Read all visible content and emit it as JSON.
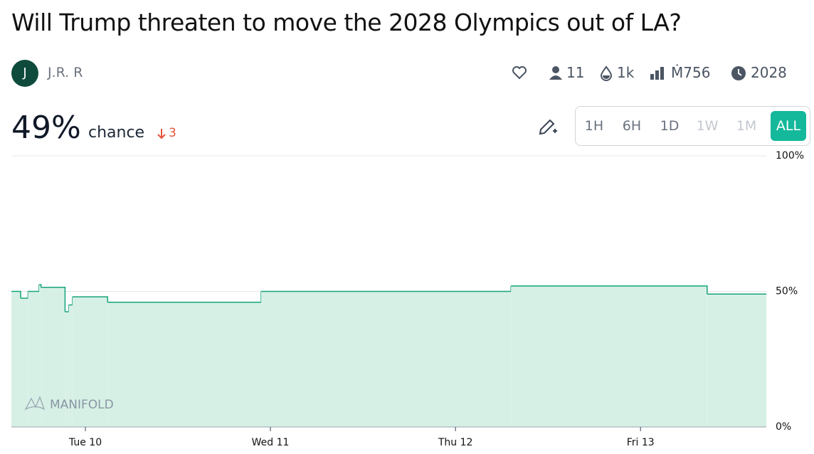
{
  "header": {
    "title": "Will Trump threaten to move the 2028 Olympics out of LA?",
    "avatar": "J",
    "author": "J.R. R",
    "stats": {
      "traders": "11",
      "liquidity": "1k",
      "volume": "Ṁ756",
      "close": "2028"
    }
  },
  "probability": {
    "value": "49%",
    "label": "chance",
    "change": "3"
  },
  "range_buttons": [
    {
      "label": "1H",
      "state": "enabled"
    },
    {
      "label": "6H",
      "state": "enabled"
    },
    {
      "label": "1D",
      "state": "enabled"
    },
    {
      "label": "1W",
      "state": "disabled"
    },
    {
      "label": "1M",
      "state": "disabled"
    },
    {
      "label": "ALL",
      "state": "selected"
    }
  ],
  "chart_data": {
    "type": "step",
    "watermark": "MANIFOLD",
    "color": "#16a37a",
    "fill": "#d7f0e6",
    "x": [
      9.6,
      9.65,
      9.69,
      9.75,
      9.76,
      9.89,
      9.91,
      9.93,
      10.12,
      10.95,
      12.3,
      13.36,
      13.68
    ],
    "values": [
      50,
      47.5,
      50,
      52.5,
      51.5,
      42.5,
      45,
      48,
      46,
      50,
      52,
      49,
      49
    ],
    "xlim": [
      9.6,
      13.68
    ],
    "xticks": [
      {
        "value": 10,
        "label": "Tue 10"
      },
      {
        "value": 11,
        "label": "Wed 11"
      },
      {
        "value": 12,
        "label": "Thu 12"
      },
      {
        "value": 13,
        "label": "Fri 13"
      }
    ],
    "ylim": [
      0,
      100
    ],
    "yticks": [
      {
        "value": 0,
        "label": "0%"
      },
      {
        "value": 50,
        "label": "50%"
      },
      {
        "value": 100,
        "label": "100%"
      }
    ],
    "grid": true
  }
}
